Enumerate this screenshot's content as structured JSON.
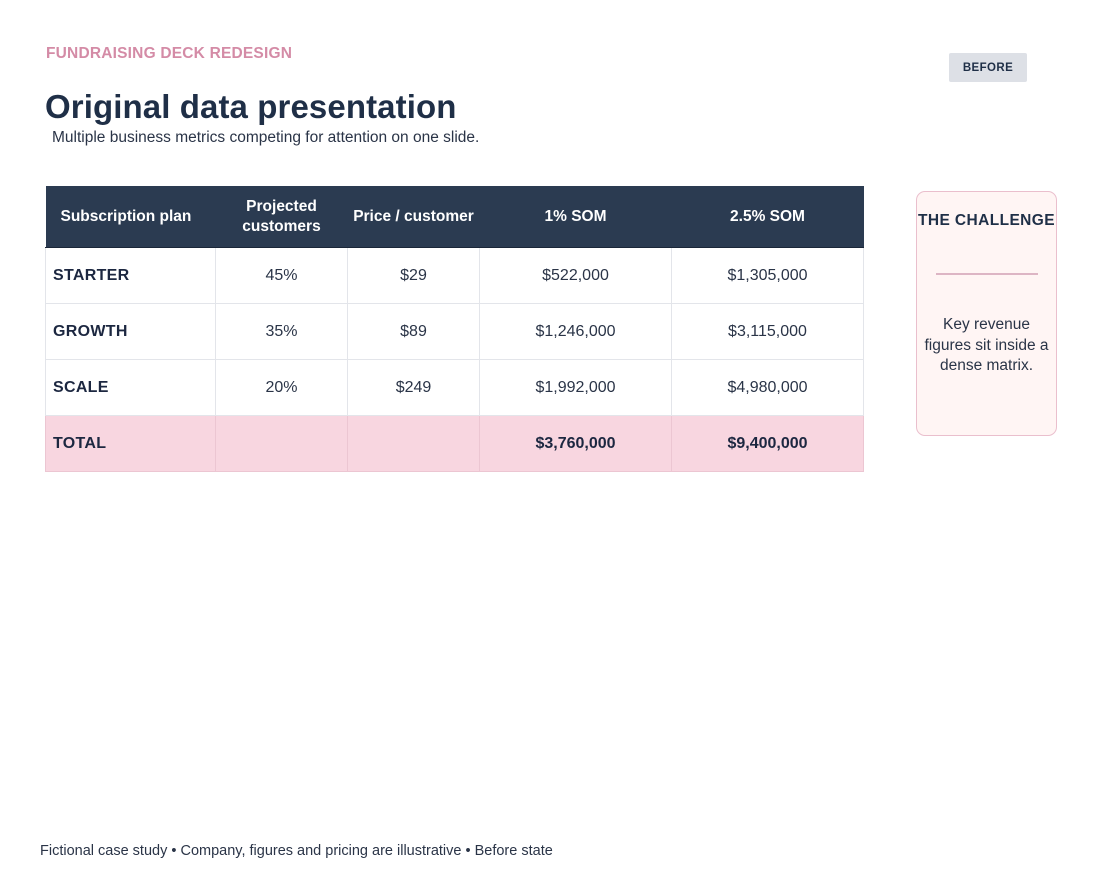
{
  "header": {
    "eyebrow": "FUNDRAISING DECK REDESIGN",
    "badge": "BEFORE",
    "title": "Original data presentation",
    "subtitle": "Multiple business metrics competing for attention on one slide."
  },
  "table": {
    "columns": [
      "Subscription plan",
      "Projected customers",
      "Price / customer",
      "1% SOM",
      "2.5% SOM"
    ],
    "rows": [
      {
        "plan": "STARTER",
        "customers": "45%",
        "price": "$29",
        "som1": "$522,000",
        "som25": "$1,305,000"
      },
      {
        "plan": "GROWTH",
        "customers": "35%",
        "price": "$89",
        "som1": "$1,246,000",
        "som25": "$3,115,000"
      },
      {
        "plan": "SCALE",
        "customers": "20%",
        "price": "$249",
        "som1": "$1,992,000",
        "som25": "$4,980,000"
      }
    ],
    "total": {
      "label": "TOTAL",
      "customers": "",
      "price": "",
      "som1": "$3,760,000",
      "som25": "$9,400,000"
    }
  },
  "challenge": {
    "title": "THE CHALLENGE",
    "body": "Key revenue figures sit inside a dense matrix."
  },
  "footer": {
    "text": "Fictional case study • Company, figures and pricing are illustrative • Before state"
  },
  "colors": {
    "navy": "#2b3b51",
    "accent_pink": "#d48ba6",
    "total_row": "#f8d6e0",
    "callout_bg": "#fff5f4"
  }
}
